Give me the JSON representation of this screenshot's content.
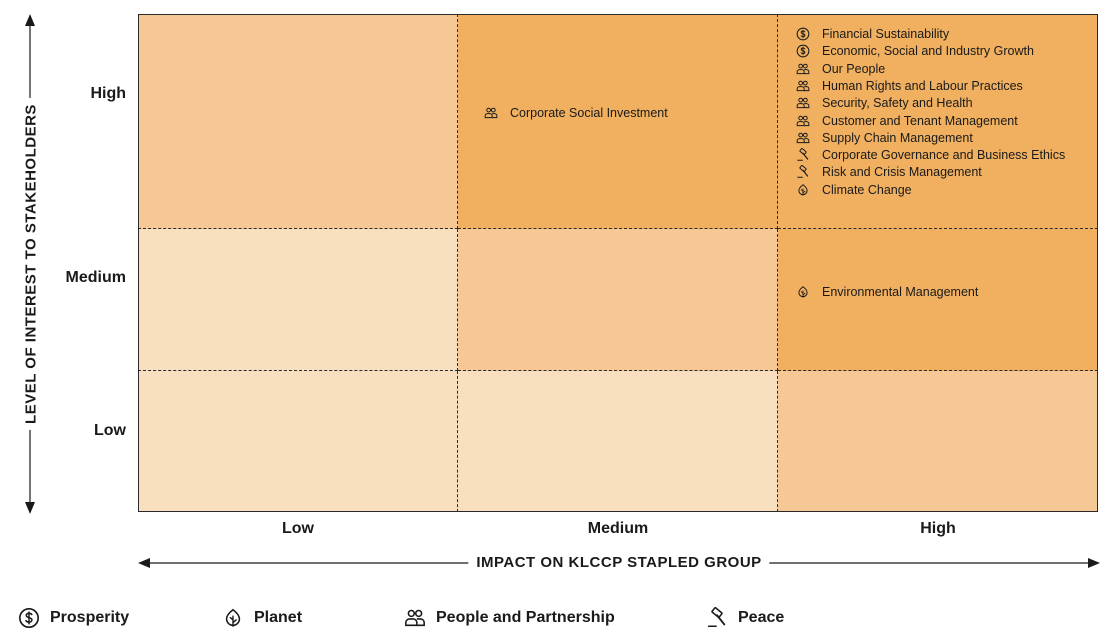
{
  "colors": {
    "cell_dark": "#f0b060",
    "cell_mid": "#f5c896",
    "cell_light": "#f8dfc0"
  },
  "y_axis": {
    "title": "LEVEL OF INTEREST TO STAKEHOLDERS",
    "ticks": [
      "High",
      "Medium",
      "Low"
    ]
  },
  "x_axis": {
    "title": "IMPACT ON KLCCP STAPLED GROUP",
    "ticks": [
      "Low",
      "Medium",
      "High"
    ]
  },
  "cells": [
    {
      "row": "High",
      "col": "Low",
      "shade": "mid",
      "items": []
    },
    {
      "row": "High",
      "col": "Medium",
      "shade": "dark",
      "items": [
        {
          "label": "Corporate Social Investment",
          "icon": "people-icon"
        }
      ]
    },
    {
      "row": "High",
      "col": "High",
      "shade": "dark",
      "items": [
        {
          "label": "Financial Sustainability",
          "icon": "dollar-icon"
        },
        {
          "label": "Economic, Social and Industry Growth",
          "icon": "dollar-icon"
        },
        {
          "label": "Our People",
          "icon": "people-icon"
        },
        {
          "label": "Human Rights and Labour Practices",
          "icon": "people-icon"
        },
        {
          "label": "Security, Safety and Health",
          "icon": "people-icon"
        },
        {
          "label": "Customer and Tenant Management",
          "icon": "people-icon"
        },
        {
          "label": "Supply Chain Management",
          "icon": "people-icon"
        },
        {
          "label": "Corporate Governance and Business Ethics",
          "icon": "gavel-icon"
        },
        {
          "label": "Risk and Crisis Management",
          "icon": "gavel-icon"
        },
        {
          "label": "Climate Change",
          "icon": "leaf-icon"
        }
      ]
    },
    {
      "row": "Medium",
      "col": "Low",
      "shade": "light",
      "items": []
    },
    {
      "row": "Medium",
      "col": "Medium",
      "shade": "mid",
      "items": []
    },
    {
      "row": "Medium",
      "col": "High",
      "shade": "dark",
      "items": [
        {
          "label": "Environmental Management",
          "icon": "leaf-icon"
        }
      ]
    },
    {
      "row": "Low",
      "col": "Low",
      "shade": "light",
      "items": []
    },
    {
      "row": "Low",
      "col": "Medium",
      "shade": "light",
      "items": []
    },
    {
      "row": "Low",
      "col": "High",
      "shade": "mid",
      "items": []
    }
  ],
  "legend": [
    {
      "label": "Prosperity",
      "icon": "dollar-icon"
    },
    {
      "label": "Planet",
      "icon": "leaf-icon"
    },
    {
      "label": "People and Partnership",
      "icon": "people-icon"
    },
    {
      "label": "Peace",
      "icon": "gavel-icon"
    }
  ]
}
